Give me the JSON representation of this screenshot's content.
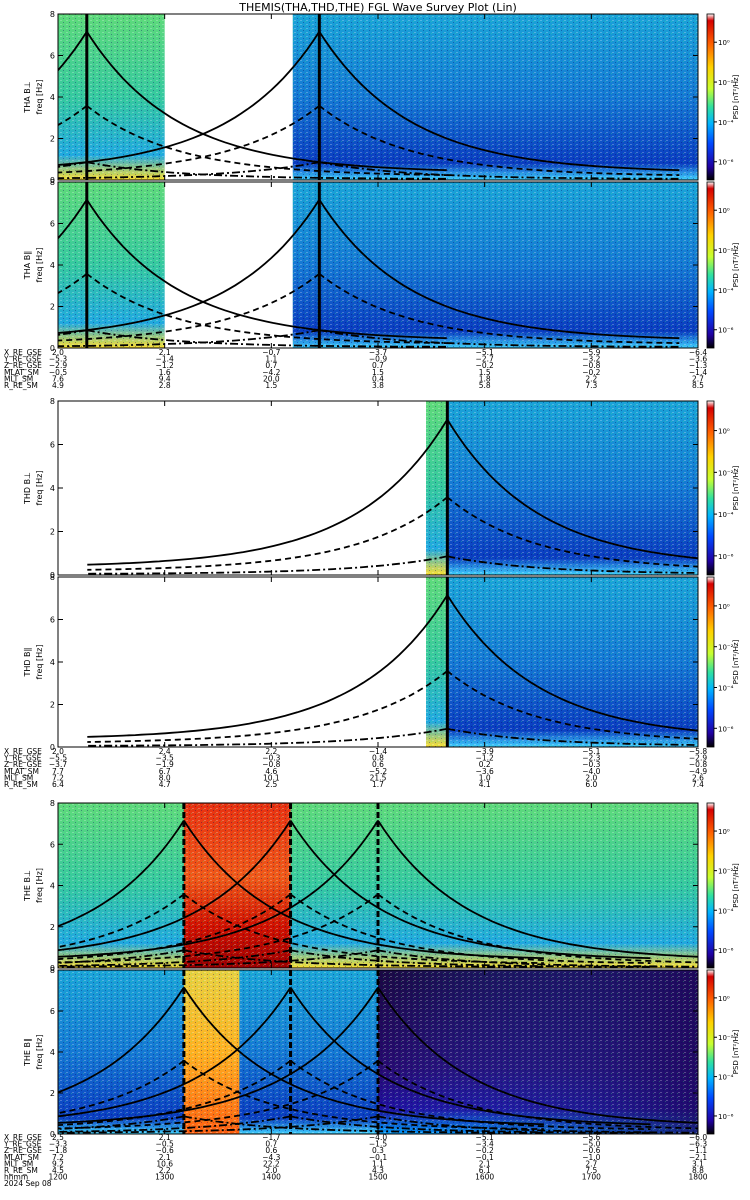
{
  "title": "THEMIS(THA,THD,THE) FGL Wave Survey Plot (Lin)",
  "colorbar": {
    "label": "PSD [nT²/Hz]",
    "ticks": [
      "10⁰",
      "10⁻²",
      "10⁻⁴",
      "10⁻⁶"
    ],
    "colors": [
      "#ffffff",
      "#d40000",
      "#ff6000",
      "#ffd200",
      "#c8ff30",
      "#30e0a0",
      "#00b4ff",
      "#0048ff",
      "#2000a0",
      "#000000"
    ]
  },
  "chart_data": {
    "type": "heatmap",
    "title": "THEMIS(THA,THD,THE) FGL Wave Survey Plot (Lin)",
    "x_axis": {
      "ticks": [
        "1200",
        "1300",
        "1400",
        "1500",
        "1600",
        "1700",
        "1800"
      ],
      "range": [
        1200,
        1800
      ],
      "time_label": "hhmm",
      "date": "2024 Sep 08"
    },
    "y_axis": {
      "range": [
        0,
        8
      ],
      "ticks": [
        "0",
        "2",
        "4",
        "6",
        "8"
      ],
      "unit": "freq [Hz]"
    },
    "panels": [
      {
        "label": "THA B⊥",
        "ylabel": "freq [Hz]",
        "data_gaps": [
          [
            1300,
            1420
          ]
        ]
      },
      {
        "label": "THA B∥",
        "ylabel": "freq [Hz]",
        "data_gaps": [
          [
            1300,
            1420
          ]
        ]
      },
      {
        "label": "THD B⊥",
        "ylabel": "freq [Hz]",
        "data_gaps": [
          [
            1200,
            1545
          ]
        ]
      },
      {
        "label": "THD B∥",
        "ylabel": "freq [Hz]",
        "data_gaps": [
          [
            1200,
            1545
          ]
        ]
      },
      {
        "label": "THE B⊥",
        "ylabel": "freq [Hz]",
        "data_gaps": []
      },
      {
        "label": "THE B∥",
        "ylabel": "freq [Hz]",
        "data_gaps": []
      }
    ],
    "ephemeris": [
      {
        "probe": "THA",
        "rows": [
          {
            "label": "X_RE_GSE",
            "values": [
              "2.0",
              "2.1",
              "−0.7",
              "−3.7",
              "−5.1",
              "−5.9",
              "−6.4"
            ]
          },
          {
            "label": "Y_RE_GSE",
            "values": [
              "−5.3",
              "−1.4",
              "1.1",
              "−0.9",
              "−2.7",
              "−3.2",
              "−3.6"
            ]
          },
          {
            "label": "Z_RE_GSE",
            "values": [
              "−2.9",
              "−1.2",
              "0.7",
              "0.7",
              "−0.2",
              "−0.8",
              "−1.3"
            ]
          },
          {
            "label": "MLAT_SM",
            "values": [
              "−0.5",
              "1.6",
              "−4.2",
              "1.5",
              "1.5",
              "−0.2",
              "−1.4"
            ]
          },
          {
            "label": "MLT_SM",
            "values": [
              "7.6",
              "9.4",
              "20.0",
              "0.4",
              "1.8",
              "2.2",
              "2.7"
            ]
          },
          {
            "label": "R_RE_SM",
            "values": [
              "4.9",
              "2.8",
              "1.5",
              "3.8",
              "5.8",
              "7.3",
              "8.5"
            ]
          }
        ]
      },
      {
        "probe": "THD",
        "rows": [
          {
            "label": "X_RE_GSE",
            "values": [
              "2.0",
              "2.4",
              "2.2",
              "−1.4",
              "−3.9",
              "−5.1",
              "−5.8"
            ]
          },
          {
            "label": "Y_RE_GSE",
            "values": [
              "−5.5",
              "−3.5",
              "−0.3",
              "0.8",
              "−1.2",
              "−2.3",
              "−2.9"
            ]
          },
          {
            "label": "Z_RE_GSE",
            "values": [
              "−3.7",
              "−1.9",
              "−0.8",
              "0.6",
              "0.2",
              "−0.3",
              "−0.8"
            ]
          },
          {
            "label": "MLAT_SM",
            "values": [
              "7.7",
              "6.7",
              "4.6",
              "−5.2",
              "−3.6",
              "−4.0",
              "−4.9"
            ]
          },
          {
            "label": "MLT_SM",
            "values": [
              "7.2",
              "8.0",
              "10.1",
              "21.5",
              "1.0",
              "2.0",
              "2.6"
            ]
          },
          {
            "label": "R_RE_SM",
            "values": [
              "6.4",
              "4.7",
              "2.5",
              "1.7",
              "4.1",
              "6.0",
              "7.4"
            ]
          }
        ]
      },
      {
        "probe": "THE",
        "rows": [
          {
            "label": "X_RE_GSE",
            "values": [
              "2.5",
              "2.1",
              "−1.7",
              "−4.0",
              "−5.1",
              "−5.6",
              "−6.0"
            ]
          },
          {
            "label": "Y_RE_GSE",
            "values": [
              "−3.3",
              "−0.5",
              "0.7",
              "−1.5",
              "−3.4",
              "−5.0",
              "−6.3"
            ]
          },
          {
            "label": "Z_RE_GSE",
            "values": [
              "−1.8",
              "−0.6",
              "0.6",
              "0.3",
              "−0.2",
              "−0.6",
              "−1.1"
            ]
          },
          {
            "label": "MLAT_SM",
            "values": [
              "7.2",
              "2.1",
              "−4.3",
              "−0.1",
              "−0.1",
              "−1.0",
              "−2.1"
            ]
          },
          {
            "label": "MLT_SM",
            "values": [
              "9.2",
              "10.6",
              "22.2",
              "1.1",
              "2.1",
              "2.7",
              "3.1"
            ]
          },
          {
            "label": "R_RE_SM",
            "values": [
              "4.5",
              "2.2",
              "2.0",
              "4.3",
              "6.1",
              "7.5",
              "8.8"
            ]
          }
        ]
      }
    ]
  }
}
